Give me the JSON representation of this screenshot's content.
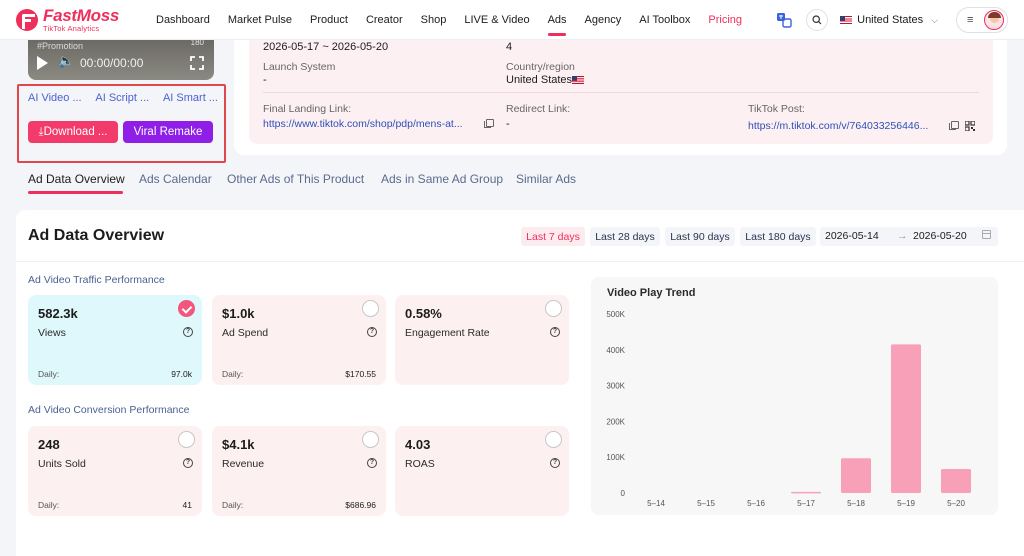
{
  "brand": {
    "name": "FastMoss",
    "tagline": "TikTok Analytics"
  },
  "nav": {
    "items": [
      {
        "label": "Dashboard"
      },
      {
        "label": "Market Pulse"
      },
      {
        "label": "Product"
      },
      {
        "label": "Creator"
      },
      {
        "label": "Shop"
      },
      {
        "label": "LIVE & Video"
      },
      {
        "label": "Ads",
        "active": true
      },
      {
        "label": "Agency"
      },
      {
        "label": "AI Toolbox"
      },
      {
        "label": "Pricing"
      }
    ],
    "region": "United States",
    "menu_glyph": "≡"
  },
  "video": {
    "tag": "#Promotion",
    "duration_badge": "180",
    "time": "00:00/00:00",
    "ai_links": [
      "AI Video ...",
      "AI Script ...",
      "AI Smart ..."
    ],
    "download_label": "⤓Download ...",
    "remake_label": "Viral Remake"
  },
  "info": {
    "date_range": "2026-05-17 ~ 2026-05-20",
    "count_value": "4",
    "launch_system_label": "Launch System",
    "launch_system_value": "-",
    "country_label": "Country/region",
    "country_value": "United States",
    "landing_label": "Final Landing Link:",
    "landing_value": "https://www.tiktok.com/shop/pdp/mens-at...",
    "redirect_label": "Redirect Link:",
    "redirect_value": "-",
    "post_label": "TikTok Post:",
    "post_value": "https://m.tiktok.com/v/764033256446..."
  },
  "tabs": [
    {
      "label": "Ad Data Overview",
      "active": true
    },
    {
      "label": "Ads Calendar"
    },
    {
      "label": "Other Ads of This Product"
    },
    {
      "label": "Ads in Same Ad Group"
    },
    {
      "label": "Similar Ads"
    }
  ],
  "overview": {
    "title": "Ad Data Overview",
    "ranges": [
      "Last 7 days",
      "Last 28 days",
      "Last 90 days",
      "Last 180 days"
    ],
    "active_range": "Last 7 days",
    "date_start": "2026-05-14",
    "date_arrow": "→",
    "date_end": "2026-05-20",
    "traffic_label": "Ad Video Traffic Performance",
    "conversion_label": "Ad Video Conversion Performance",
    "daily_label": "Daily:",
    "metrics": [
      {
        "value": "582.3k",
        "label": "Views",
        "daily": "97.0k",
        "selected": true
      },
      {
        "value": "$1.0k",
        "label": "Ad Spend",
        "daily": "$170.55"
      },
      {
        "value": "0.58%",
        "label": "Engagement Rate",
        "daily": ""
      },
      {
        "value": "248",
        "label": "Units Sold",
        "daily": "41"
      },
      {
        "value": "$4.1k",
        "label": "Revenue",
        "daily": "$686.96"
      },
      {
        "value": "4.03",
        "label": "ROAS",
        "daily": ""
      }
    ]
  },
  "colors": {
    "brand": "#ee2f5b",
    "remake": "#8f1ee6",
    "bar": "#f7a0b8",
    "selected_card": "#def8fb",
    "card": "#fdf0f0"
  },
  "chart_data": {
    "type": "bar",
    "title": "Video Play Trend",
    "categories": [
      "5–14",
      "5–15",
      "5–16",
      "5–17",
      "5–18",
      "5–19",
      "5–20"
    ],
    "values": [
      0,
      0,
      0,
      3000,
      97000,
      415000,
      67000
    ],
    "yticks": [
      "0",
      "100K",
      "200K",
      "300K",
      "400K",
      "500K"
    ],
    "ylim": [
      0,
      500000
    ],
    "grid": false,
    "bar_color": "#f7a0b8"
  }
}
